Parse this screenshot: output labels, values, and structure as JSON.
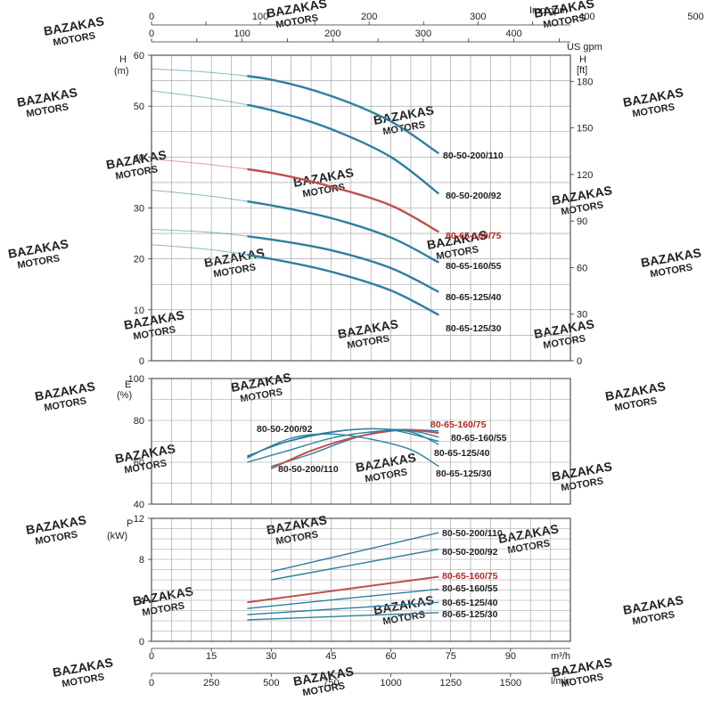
{
  "axes": {
    "top_imp_label": "Imp gpm",
    "top_us_label": "US gpm",
    "h_label_main": "H",
    "h_label_unit": "(m)",
    "h_right_label": "H",
    "h_right_unit": "[ft]",
    "e_label_main": "E",
    "e_label_unit": "(%)",
    "p_label_main": "P",
    "p_label_unit": "(kW)",
    "m3h_label": "m³/h",
    "lmin_label": "l/min",
    "imp_ticks": [
      "0",
      "100",
      "200",
      "300",
      "400",
      "500"
    ],
    "us_ticks": [
      "0",
      "100",
      "200",
      "300",
      "400"
    ],
    "m3h_ticks": [
      "0",
      "15",
      "30",
      "45",
      "60",
      "75",
      "90"
    ],
    "lmin_ticks": [
      "0",
      "250",
      "500",
      "750",
      "1000",
      "1250",
      "1500"
    ],
    "h_ticks": [
      "0",
      "10",
      "20",
      "30",
      "40",
      "50",
      "60"
    ],
    "ft_ticks": [
      "0",
      "30",
      "60",
      "90",
      "120",
      "150",
      "180"
    ],
    "e_ticks": [
      "40",
      "60",
      "80",
      "100"
    ],
    "p_ticks": [
      "0",
      "4",
      "8",
      "12"
    ]
  },
  "chart_data": [
    {
      "type": "line",
      "xlabel": "m³/h",
      "ylabel": "H (m)",
      "xlim": [
        0,
        105
      ],
      "ylim": [
        0,
        60
      ],
      "grid": true,
      "series": [
        {
          "name": "80-50-200/110",
          "color": "#2e7f9e",
          "highlight": false,
          "x": [
            0,
            15,
            30,
            45,
            60,
            72
          ],
          "y": [
            57.3,
            56.6,
            55.2,
            52.0,
            47.0,
            40.7
          ]
        },
        {
          "name": "80-50-200/92",
          "color": "#2e7f9e",
          "highlight": false,
          "x": [
            0,
            15,
            30,
            45,
            60,
            72
          ],
          "y": [
            53.0,
            51.5,
            49.2,
            45.5,
            40.0,
            32.8
          ]
        },
        {
          "name": "80-65-160/75",
          "color": "#c0504d",
          "highlight": true,
          "x": [
            0,
            15,
            30,
            45,
            60,
            72
          ],
          "y": [
            39.6,
            38.5,
            36.9,
            34.2,
            30.5,
            25.3
          ]
        },
        {
          "name": "80-65-160/55",
          "color": "#2e7f9e",
          "highlight": false,
          "x": [
            0,
            15,
            30,
            45,
            60,
            72
          ],
          "y": [
            33.5,
            32.3,
            30.5,
            28.0,
            24.2,
            19.3
          ]
        },
        {
          "name": "80-65-125/40",
          "color": "#2e7f9e",
          "highlight": false,
          "x": [
            0,
            15,
            30,
            45,
            60,
            72
          ],
          "y": [
            25.8,
            25.2,
            23.8,
            21.7,
            18.2,
            13.5
          ]
        },
        {
          "name": "80-65-125/30",
          "color": "#2e7f9e",
          "highlight": false,
          "x": [
            0,
            15,
            30,
            45,
            60,
            72
          ],
          "y": [
            22.8,
            21.8,
            20.0,
            17.5,
            13.8,
            9.0
          ]
        }
      ]
    },
    {
      "type": "line",
      "xlabel": "m³/h",
      "ylabel": "E (%)",
      "xlim": [
        0,
        105
      ],
      "ylim": [
        40,
        100
      ],
      "grid": true,
      "series": [
        {
          "name": "80-50-200/92",
          "color": "#2e7f9e",
          "x": [
            24,
            30,
            40,
            50,
            60,
            72
          ],
          "y": [
            62,
            67.5,
            72.5,
            75.5,
            75.5,
            70
          ]
        },
        {
          "name": "80-50-200/110",
          "color": "#2e7f9e",
          "x": [
            30,
            40,
            50,
            60,
            72
          ],
          "y": [
            58,
            64,
            71,
            75.5,
            75
          ]
        },
        {
          "name": "80-65-160/75",
          "color": "#c0504d",
          "x": [
            30,
            40,
            50,
            60,
            65,
            72
          ],
          "y": [
            57,
            65.5,
            71.5,
            75,
            75.5,
            74
          ]
        },
        {
          "name": "80-65-160/55",
          "color": "#2e7f9e",
          "x": [
            24,
            35,
            45,
            55,
            65,
            72
          ],
          "y": [
            60,
            66,
            71.5,
            74.5,
            75,
            72
          ]
        },
        {
          "name": "80-65-125/40",
          "color": "#2e7f9e",
          "x": [
            24,
            35,
            45,
            55,
            65,
            72
          ],
          "y": [
            63,
            70.5,
            74.5,
            76,
            74.5,
            68.5
          ]
        },
        {
          "name": "80-65-125/30",
          "color": "#2e7f9e",
          "x": [
            24,
            35,
            45,
            55,
            65,
            72
          ],
          "y": [
            62.5,
            71.5,
            73.5,
            71,
            66,
            58
          ]
        }
      ]
    },
    {
      "type": "line",
      "xlabel": "m³/h",
      "ylabel": "P (kW)",
      "xlim": [
        0,
        105
      ],
      "ylim": [
        0,
        12
      ],
      "grid": true,
      "series": [
        {
          "name": "80-50-200/110",
          "color": "#2e7f9e",
          "x": [
            30,
            72
          ],
          "y": [
            6.8,
            10.6
          ]
        },
        {
          "name": "80-50-200/92",
          "color": "#2e7f9e",
          "x": [
            30,
            72
          ],
          "y": [
            6.0,
            9.0
          ]
        },
        {
          "name": "80-65-160/75",
          "color": "#c0504d",
          "x": [
            24,
            72
          ],
          "y": [
            3.8,
            6.3
          ]
        },
        {
          "name": "80-65-160/55",
          "color": "#2e7f9e",
          "x": [
            24,
            72
          ],
          "y": [
            3.2,
            5.1
          ]
        },
        {
          "name": "80-65-125/40",
          "color": "#2e7f9e",
          "x": [
            24,
            72
          ],
          "y": [
            2.6,
            3.8
          ]
        },
        {
          "name": "80-65-125/30",
          "color": "#2e7f9e",
          "x": [
            24,
            72
          ],
          "y": [
            2.1,
            2.8
          ]
        }
      ]
    }
  ],
  "labels": {
    "h": [
      "80-50-200/110",
      "80-50-200/92",
      "80-65-160/75",
      "80-65-160/55",
      "80-65-125/40",
      "80-65-125/30"
    ],
    "e": [
      "80-50-200/92",
      "80-50-200/110",
      "80-65-160/75",
      "80-65-160/55",
      "80-65-125/40",
      "80-65-125/30"
    ],
    "p": [
      "80-50-200/110",
      "80-50-200/92",
      "80-65-160/75",
      "80-65-160/55",
      "80-65-125/40",
      "80-65-125/30"
    ]
  },
  "colors": {
    "blue": "#2e7f9e",
    "red": "#c0504d",
    "red_text": "#b32a2a"
  },
  "watermark": {
    "line1": "BAZAKAS",
    "line2": "MOTORS",
    "color": "#f2c9c9"
  }
}
